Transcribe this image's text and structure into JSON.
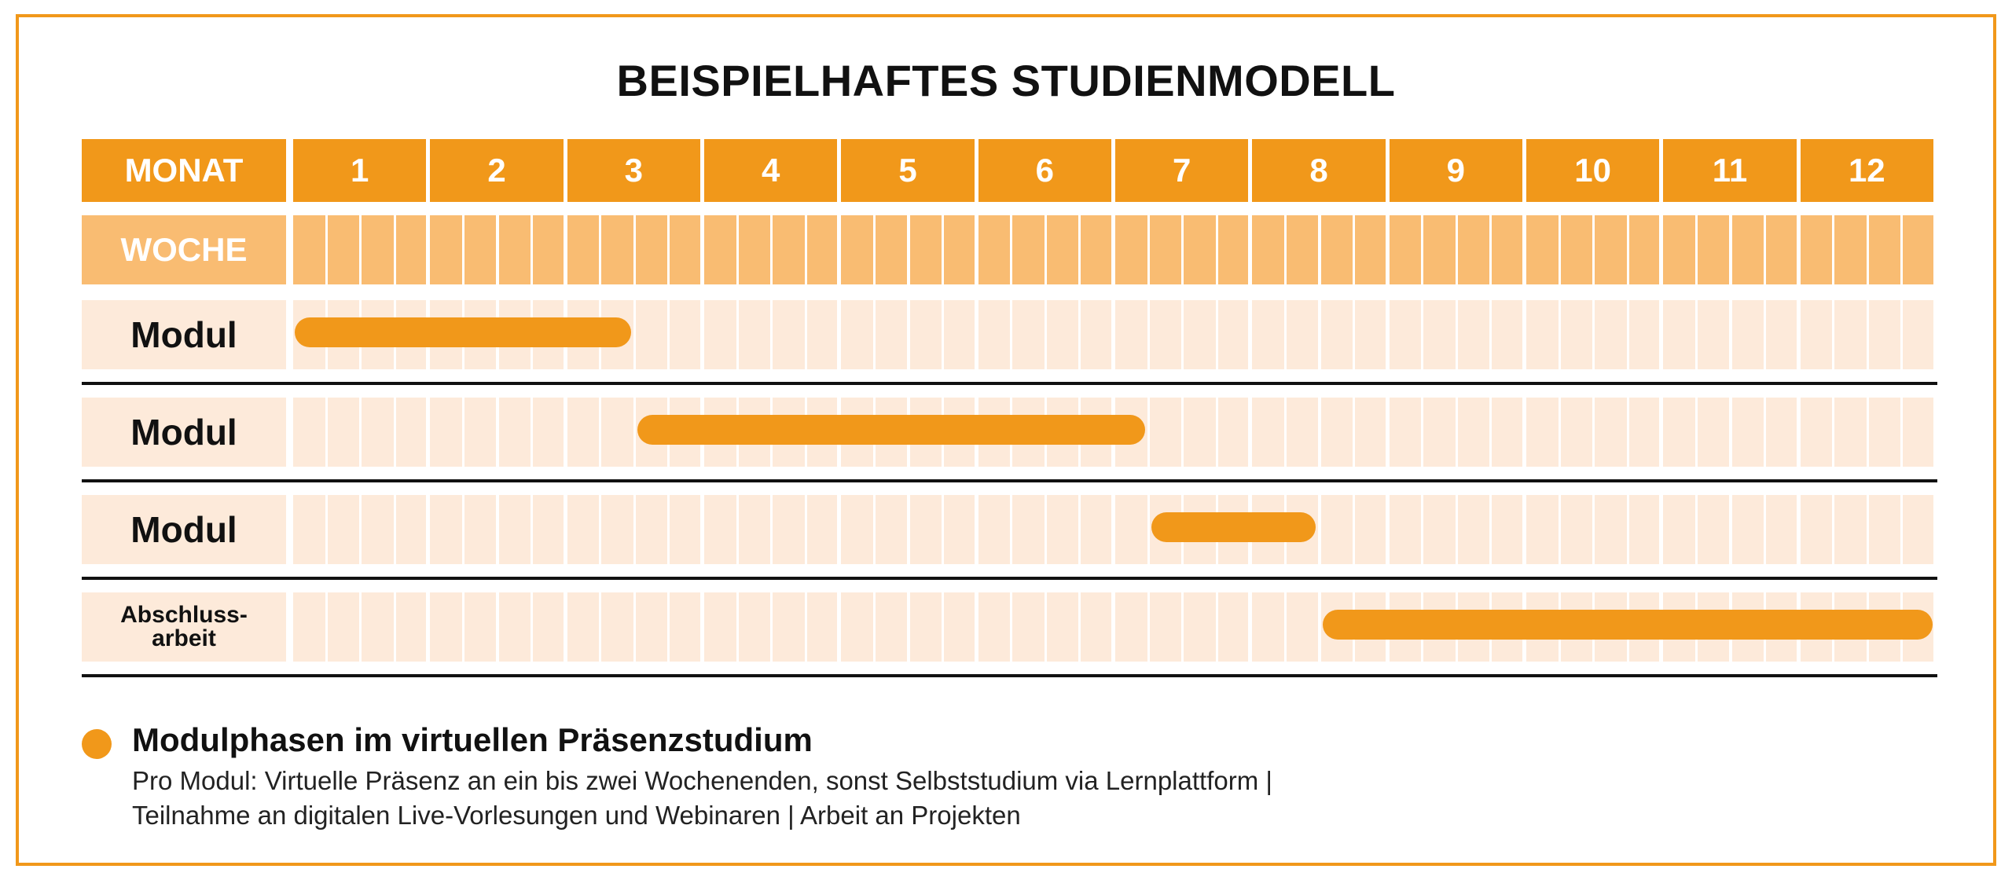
{
  "title": "BEISPIELHAFTES STUDIENMODELL",
  "colors": {
    "orange": "#f1981a",
    "week_header": "#f9bc72",
    "module_bg": "#fdeada",
    "text": "#111111",
    "frame": "#f1981a"
  },
  "header": {
    "month_label": "MONAT",
    "week_label": "WOCHE",
    "months": [
      "1",
      "2",
      "3",
      "4",
      "5",
      "6",
      "7",
      "8",
      "9",
      "10",
      "11",
      "12"
    ],
    "weeks_per_month": 4
  },
  "rows": [
    {
      "label": "Modul",
      "start_week": 0,
      "end_week": 10
    },
    {
      "label": "Modul",
      "start_week": 10,
      "end_week": 25
    },
    {
      "label": "Modul",
      "start_week": 25,
      "end_week": 30
    },
    {
      "label": "Abschluss-\narbeit",
      "start_week": 30,
      "end_week": 48
    }
  ],
  "legend": {
    "icon": "orange-dot",
    "title": "Modulphasen im virtuellen Präsenzstudium",
    "line1": "Pro Modul: Virtuelle Präsenz an ein bis zwei Wochenenden, sonst Selbststudium via Lernplattform |",
    "line2": "Teilnahme an digitalen Live-Vorlesungen und Webinaren | Arbeit an Projekten"
  }
}
